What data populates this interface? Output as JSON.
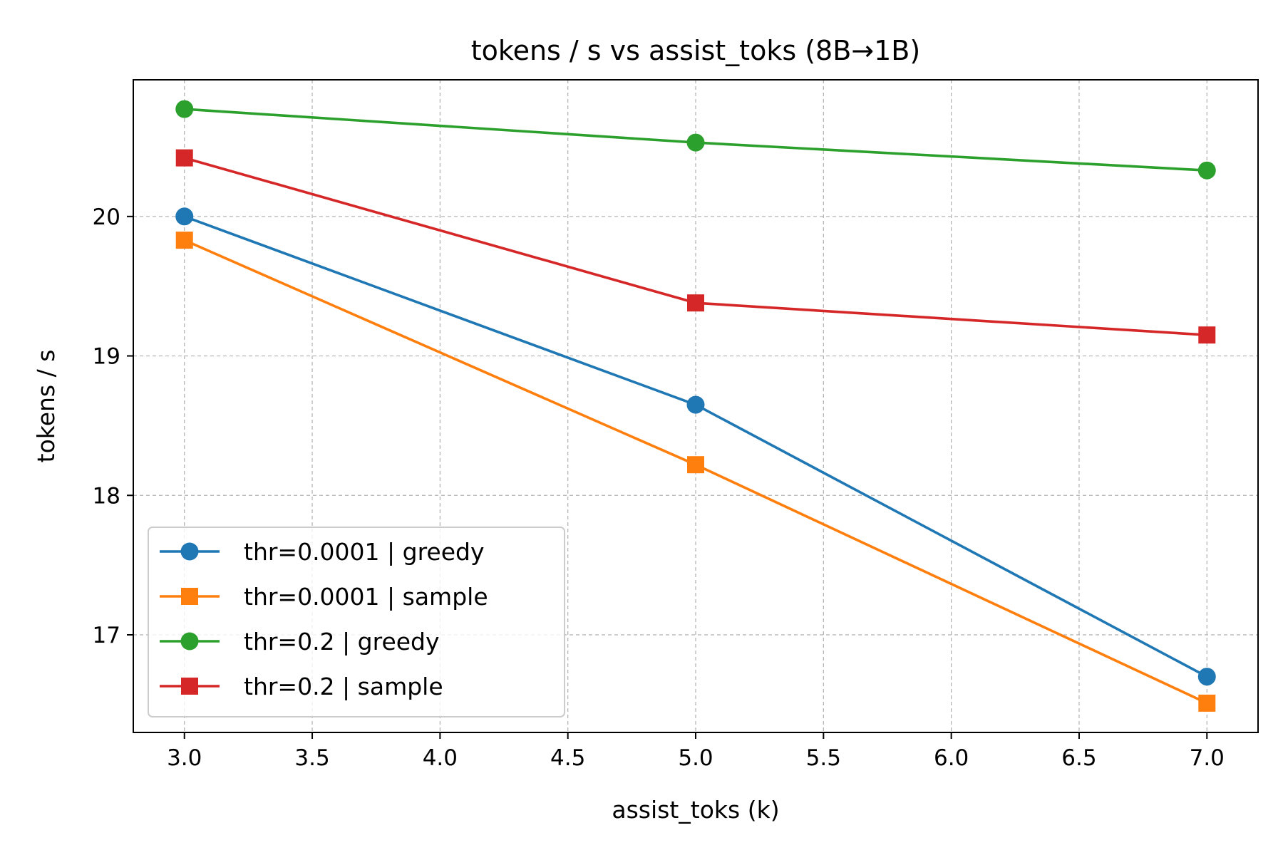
{
  "chart_data": {
    "type": "line",
    "title": "tokens / s vs assist_toks (8B→1B)",
    "xlabel": "assist_toks (k)",
    "ylabel": "tokens / s",
    "xlim": [
      2.8,
      7.2
    ],
    "ylim": [
      16.3,
      20.98
    ],
    "xticks": [
      3.0,
      3.5,
      4.0,
      4.5,
      5.0,
      5.5,
      6.0,
      6.5,
      7.0
    ],
    "xtick_labels": [
      "3.0",
      "3.5",
      "4.0",
      "4.5",
      "5.0",
      "5.5",
      "6.0",
      "6.5",
      "7.0"
    ],
    "yticks": [
      17,
      18,
      19,
      20
    ],
    "ytick_labels": [
      "17",
      "18",
      "19",
      "20"
    ],
    "grid": true,
    "legend_position": "lower-left",
    "x": [
      3.0,
      5.0,
      7.0
    ],
    "series": [
      {
        "name": "thr=0.0001 | greedy",
        "marker": "circle",
        "color": "#1f77b4",
        "values": [
          20.0,
          18.65,
          16.7
        ]
      },
      {
        "name": "thr=0.0001 | sample",
        "marker": "square",
        "color": "#ff7f0e",
        "values": [
          19.83,
          18.22,
          16.51
        ]
      },
      {
        "name": "thr=0.2 | greedy",
        "marker": "circle",
        "color": "#2ca02c",
        "values": [
          20.77,
          20.53,
          20.33
        ]
      },
      {
        "name": "thr=0.2 | sample",
        "marker": "square",
        "color": "#d62728",
        "values": [
          20.42,
          19.38,
          19.15
        ]
      }
    ]
  }
}
